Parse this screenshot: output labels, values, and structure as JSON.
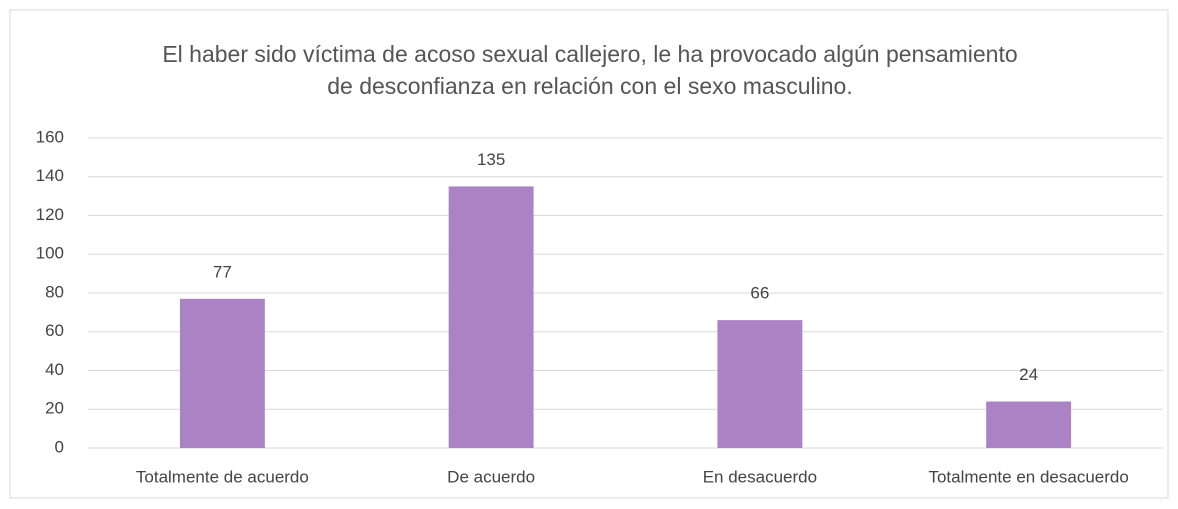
{
  "chart_data": {
    "type": "bar",
    "title": "El haber sido víctima de acoso sexual callejero, le ha provocado algún pensamiento de desconfianza en relación con el sexo masculino.",
    "categories": [
      "Totalmente de acuerdo",
      "De acuerdo",
      "En desacuerdo",
      "Totalmente en desacuerdo"
    ],
    "values": [
      77,
      135,
      66,
      24
    ],
    "color": "#ab83c5",
    "ylim": [
      0,
      160
    ],
    "yticks": [
      0,
      20,
      40,
      60,
      80,
      100,
      120,
      140,
      160
    ],
    "grid": true
  }
}
